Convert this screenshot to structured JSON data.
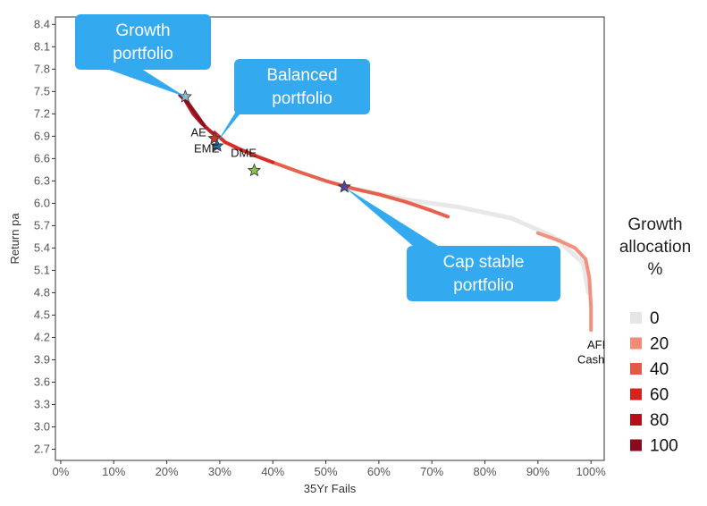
{
  "chart_data": {
    "type": "scatter",
    "xlabel": "35Yr Fails",
    "ylabel": "Return pa",
    "xlim": [
      -0.01,
      1.025
    ],
    "ylim": [
      2.55,
      8.5
    ],
    "x_ticks": [
      0,
      0.1,
      0.2,
      0.3,
      0.4,
      0.5,
      0.6,
      0.7,
      0.8,
      0.9,
      1.0
    ],
    "x_tick_labels": [
      "0%",
      "10%",
      "20%",
      "30%",
      "40%",
      "50%",
      "60%",
      "70%",
      "80%",
      "90%",
      "100%"
    ],
    "y_ticks": [
      2.7,
      3.0,
      3.3,
      3.6,
      3.9,
      4.2,
      4.5,
      4.8,
      5.1,
      5.4,
      5.7,
      6.0,
      6.3,
      6.6,
      6.9,
      7.2,
      7.5,
      7.8,
      8.1,
      8.4
    ],
    "y_tick_labels": [
      "2.7",
      "3.0",
      "3.3",
      "3.6",
      "3.9",
      "4.2",
      "4.5",
      "4.8",
      "5.1",
      "5.4",
      "5.7",
      "6.0",
      "6.3",
      "6.6",
      "6.9",
      "7.2",
      "7.5",
      "7.8",
      "8.1",
      "8.4"
    ],
    "grid": false,
    "legend": {
      "title_lines": [
        "Growth",
        "allocation",
        "%"
      ],
      "placement": "right",
      "entries": [
        {
          "label": "0",
          "color": "#e6e6e6"
        },
        {
          "label": "20",
          "color": "#f28a78"
        },
        {
          "label": "40",
          "color": "#e55a44"
        },
        {
          "label": "60",
          "color": "#d7221c"
        },
        {
          "label": "80",
          "color": "#b5101a"
        },
        {
          "label": "100",
          "color": "#8a0c1c"
        }
      ]
    },
    "frontier_series": [
      {
        "growth": 0,
        "points": [
          [
            0.55,
            6.2
          ],
          [
            0.65,
            6.05
          ],
          [
            0.75,
            5.95
          ],
          [
            0.85,
            5.8
          ],
          [
            0.93,
            5.55
          ],
          [
            0.985,
            5.2
          ],
          [
            0.995,
            4.8
          ]
        ]
      },
      {
        "growth": 20,
        "points": [
          [
            0.9,
            5.6
          ],
          [
            0.94,
            5.5
          ],
          [
            0.97,
            5.4
          ],
          [
            0.99,
            5.25
          ],
          [
            0.997,
            5.0
          ],
          [
            1.0,
            4.6
          ],
          [
            1.0,
            4.3
          ]
        ]
      },
      {
        "growth": 40,
        "points": [
          [
            0.4,
            6.55
          ],
          [
            0.45,
            6.42
          ],
          [
            0.5,
            6.3
          ],
          [
            0.55,
            6.2
          ],
          [
            0.6,
            6.12
          ],
          [
            0.65,
            6.02
          ],
          [
            0.7,
            5.9
          ],
          [
            0.73,
            5.82
          ]
        ]
      },
      {
        "growth": 60,
        "points": [
          [
            0.29,
            6.95
          ],
          [
            0.31,
            6.82
          ],
          [
            0.34,
            6.72
          ],
          [
            0.37,
            6.63
          ],
          [
            0.4,
            6.55
          ]
        ]
      },
      {
        "growth": 80,
        "points": [
          [
            0.235,
            7.38
          ],
          [
            0.25,
            7.2
          ],
          [
            0.265,
            7.08
          ],
          [
            0.28,
            6.98
          ],
          [
            0.29,
            6.92
          ]
        ]
      },
      {
        "growth": 100,
        "points": [
          [
            0.225,
            7.45
          ],
          [
            0.24,
            7.35
          ],
          [
            0.255,
            7.2
          ],
          [
            0.27,
            7.05
          ]
        ]
      }
    ],
    "stars": [
      {
        "name": "growth-star",
        "x": 0.235,
        "y": 7.43,
        "color": "#8fb8c8"
      },
      {
        "name": "ae-star",
        "x": 0.29,
        "y": 6.87,
        "color": "#c0392b"
      },
      {
        "name": "eme-star",
        "x": 0.295,
        "y": 6.77,
        "color": "#2b6cb0"
      },
      {
        "name": "dme-star",
        "x": 0.365,
        "y": 6.44,
        "color": "#8bc34a"
      },
      {
        "name": "cap-stable-star",
        "x": 0.535,
        "y": 6.22,
        "color": "#5b3f9a"
      }
    ],
    "point_labels": [
      {
        "text": "AE",
        "x": 0.26,
        "y": 6.9
      },
      {
        "text": "EME",
        "x": 0.275,
        "y": 6.68
      },
      {
        "text": "DME",
        "x": 0.345,
        "y": 6.62
      },
      {
        "text": "AFI",
        "x": 1.01,
        "y": 4.05
      },
      {
        "text": "Cash",
        "x": 1.0,
        "y": 3.85
      }
    ],
    "callouts": [
      {
        "lines": [
          "Growth",
          "portfolio"
        ],
        "target_x": 0.235,
        "target_y": 7.43,
        "color": "#33aaf0"
      },
      {
        "lines": [
          "Balanced",
          "portfolio"
        ],
        "target_x": 0.295,
        "target_y": 6.82,
        "color": "#33aaf0"
      },
      {
        "lines": [
          "Cap stable",
          "portfolio"
        ],
        "target_x": 0.535,
        "target_y": 6.22,
        "color": "#33aaf0"
      }
    ]
  }
}
